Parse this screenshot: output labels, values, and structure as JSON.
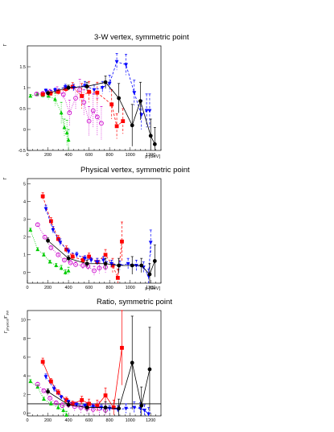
{
  "chart_data": [
    {
      "type": "scatter",
      "title": "3-W vertex, symmetric point",
      "xlabel": "p [GeV]",
      "ylabel": "Γ",
      "xlim": [
        0,
        1300
      ],
      "ylim": [
        -0.5,
        2.0
      ],
      "x_ticks": [
        0,
        200,
        400,
        600,
        800,
        1000,
        1200
      ],
      "y_ticks": [
        -0.5,
        0,
        0.5,
        1,
        1.5
      ],
      "y_tick_labels": [
        "-0.5",
        "0",
        "0.5",
        "1",
        "1.5"
      ],
      "series": [
        {
          "color": "#00cc00",
          "marker": "triangle-up",
          "line": "dotted",
          "x": [
            30,
            95,
            150,
            205,
            270,
            330,
            360,
            385,
            400
          ],
          "y": [
            0.8,
            0.84,
            0.82,
            0.8,
            0.72,
            0.4,
            0.05,
            -0.08,
            -0.25
          ],
          "err": [
            0.04,
            0.05,
            0.06,
            0.08,
            0.15,
            0.25,
            0.2,
            0.3,
            0.25
          ]
        },
        {
          "color": "#cc00cc",
          "marker": "circle-open",
          "line": "dotted",
          "x": [
            90,
            150,
            220,
            290,
            350,
            410,
            470,
            510,
            550,
            600,
            640,
            680,
            720
          ],
          "y": [
            0.85,
            0.86,
            0.9,
            0.92,
            0.84,
            0.4,
            0.75,
            0.95,
            0.65,
            0.2,
            0.45,
            0.3,
            0.15
          ],
          "err": [
            0.04,
            0.05,
            0.06,
            0.1,
            0.12,
            0.3,
            0.25,
            0.25,
            0.3,
            0.35,
            0.4,
            0.45,
            0.4
          ]
        },
        {
          "color": "#ff0000",
          "marker": "square",
          "line": "dashed",
          "x": [
            150,
            225,
            300,
            375,
            440,
            530,
            600,
            680,
            820,
            870,
            930
          ],
          "y": [
            0.84,
            0.86,
            0.9,
            0.97,
            1.02,
            0.8,
            0.9,
            0.88,
            0.6,
            0.08,
            0.2
          ],
          "err": [
            0.04,
            0.05,
            0.06,
            0.08,
            0.1,
            0.3,
            0.25,
            0.25,
            0.35,
            0.3,
            0.3
          ]
        },
        {
          "color": "#0000ff",
          "marker": "triangle-down",
          "line": "dashed",
          "x": [
            180,
            270,
            370,
            450,
            560,
            650,
            730,
            800,
            870,
            960,
            1040,
            1110,
            1160,
            1190
          ],
          "y": [
            0.93,
            0.94,
            1.02,
            1.0,
            1.05,
            0.95,
            1.0,
            1.1,
            1.62,
            1.55,
            0.88,
            0.35,
            0.45,
            0.45
          ],
          "err": [
            0.04,
            0.05,
            0.06,
            0.08,
            0.1,
            0.12,
            0.15,
            0.2,
            0.2,
            0.25,
            0.3,
            0.35,
            0.4,
            0.4
          ]
        },
        {
          "color": "#000000",
          "marker": "circle",
          "line": "solid",
          "x": [
            200,
            400,
            580,
            760,
            890,
            1020,
            1100,
            1200,
            1240
          ],
          "y": [
            0.87,
            1.0,
            1.03,
            1.13,
            0.75,
            0.1,
            0.68,
            -0.15,
            -0.35
          ],
          "err": [
            0.04,
            0.06,
            0.1,
            0.15,
            0.35,
            0.5,
            0.45,
            0.4,
            0.4
          ]
        }
      ]
    },
    {
      "type": "scatter",
      "title": "Physical vertex, symmetric point",
      "xlabel": "p [GeV]",
      "ylabel": "Γ",
      "xlim": [
        0,
        1300
      ],
      "ylim": [
        -0.6,
        5.3
      ],
      "x_ticks": [
        0,
        200,
        400,
        600,
        800,
        1000,
        1200
      ],
      "y_ticks": [
        0,
        1,
        2,
        3,
        4,
        5
      ],
      "y_tick_labels": [
        "0",
        "1",
        "2",
        "3",
        "4",
        "5"
      ],
      "series": [
        {
          "color": "#00cc00",
          "marker": "triangle-up",
          "line": "dotted",
          "x": [
            30,
            100,
            160,
            220,
            280,
            330,
            370,
            400
          ],
          "y": [
            2.4,
            1.3,
            1.0,
            0.6,
            0.4,
            0.25,
            0.0,
            0.1
          ],
          "err": [
            0.1,
            0.1,
            0.1,
            0.1,
            0.12,
            0.15,
            0.15,
            0.2
          ]
        },
        {
          "color": "#cc00cc",
          "marker": "circle-open",
          "line": "dotted",
          "x": [
            100,
            170,
            230,
            300,
            360,
            420,
            470,
            540,
            590,
            650,
            700,
            760
          ],
          "y": [
            2.7,
            2.0,
            1.4,
            1.0,
            0.7,
            0.55,
            0.45,
            0.4,
            0.35,
            0.1,
            0.25,
            0.3
          ],
          "err": [
            0.1,
            0.1,
            0.1,
            0.1,
            0.1,
            0.12,
            0.15,
            0.2,
            0.2,
            0.25,
            0.3,
            0.3
          ]
        },
        {
          "color": "#ff0000",
          "marker": "square",
          "line": "dashed",
          "x": [
            150,
            230,
            300,
            380,
            440,
            540,
            600,
            680,
            760,
            830,
            880,
            920
          ],
          "y": [
            4.3,
            2.9,
            1.9,
            1.3,
            0.9,
            0.7,
            0.9,
            0.6,
            1.0,
            0.4,
            -0.3,
            1.75
          ],
          "err": [
            0.2,
            0.2,
            0.2,
            0.2,
            0.15,
            0.2,
            0.2,
            0.2,
            0.3,
            0.4,
            0.5,
            1.1
          ]
        },
        {
          "color": "#0000ff",
          "marker": "triangle-down",
          "line": "dashed",
          "x": [
            180,
            250,
            320,
            400,
            480,
            560,
            620,
            680,
            740,
            820,
            900,
            980,
            1060,
            1130,
            1180,
            1200
          ],
          "y": [
            3.6,
            2.4,
            1.7,
            1.2,
            1.0,
            0.8,
            0.7,
            0.6,
            0.7,
            0.5,
            0.4,
            0.5,
            0.4,
            0.3,
            -0.2,
            1.7
          ],
          "err": [
            0.2,
            0.2,
            0.2,
            0.15,
            0.15,
            0.15,
            0.15,
            0.2,
            0.2,
            0.2,
            0.25,
            0.3,
            0.3,
            0.3,
            0.4,
            0.7
          ]
        },
        {
          "color": "#000000",
          "marker": "circle",
          "line": "solid",
          "x": [
            200,
            400,
            580,
            760,
            890,
            1020,
            1110,
            1190,
            1240
          ],
          "y": [
            1.8,
            0.8,
            0.5,
            0.5,
            0.4,
            0.4,
            0.4,
            -0.1,
            0.65
          ],
          "err": [
            0.15,
            0.15,
            0.2,
            0.3,
            0.4,
            0.5,
            0.4,
            0.6,
            0.9
          ]
        }
      ]
    },
    {
      "type": "scatter",
      "title": "Ratio, symmetric point",
      "xlabel": "p [GeV]",
      "ylabel": "Γphysical/Γ3W",
      "xlim": [
        0,
        1300
      ],
      "ylim": [
        -0.3,
        11.0
      ],
      "x_ticks": [
        0,
        200,
        400,
        600,
        800,
        1000,
        1200
      ],
      "y_ticks": [
        0,
        2,
        4,
        6,
        8,
        10
      ],
      "y_tick_labels": [
        "0",
        "2",
        "4",
        "6",
        "8",
        "10"
      ],
      "reference_line": 1,
      "series": [
        {
          "color": "#00cc00",
          "marker": "triangle-up",
          "line": "dotted",
          "x": [
            30,
            100,
            160,
            230,
            300,
            350,
            380
          ],
          "y": [
            3.4,
            2.8,
            1.5,
            1.0,
            0.6,
            0.3,
            -0.2
          ],
          "err": [
            0.2,
            0.2,
            0.2,
            0.2,
            0.3,
            0.5,
            0.4
          ]
        },
        {
          "color": "#cc00cc",
          "marker": "circle-open",
          "line": "dotted",
          "x": [
            100,
            160,
            220,
            280,
            340,
            400,
            460,
            520,
            580,
            640,
            700,
            760
          ],
          "y": [
            3.1,
            2.4,
            1.6,
            1.1,
            0.8,
            0.9,
            0.7,
            0.6,
            0.5,
            0.4,
            0.5,
            0.3
          ],
          "err": [
            0.2,
            0.2,
            0.2,
            0.2,
            0.3,
            0.4,
            0.5,
            0.6,
            0.6,
            0.6,
            0.7,
            0.7
          ]
        },
        {
          "color": "#ff0000",
          "marker": "square",
          "line": "solid",
          "x": [
            150,
            230,
            300,
            380,
            440,
            530,
            600,
            680,
            760,
            840,
            920
          ],
          "y": [
            5.5,
            3.4,
            2.2,
            1.4,
            1.0,
            1.4,
            1.0,
            0.8,
            1.9,
            0.6,
            7.0
          ],
          "err": [
            0.4,
            0.3,
            0.3,
            0.3,
            0.3,
            0.4,
            0.5,
            0.6,
            0.8,
            0.8,
            4.0
          ]
        },
        {
          "color": "#0000ff",
          "marker": "triangle-down",
          "line": "dashed",
          "x": [
            180,
            260,
            330,
            400,
            480,
            560,
            640,
            720,
            800,
            880,
            960,
            1040,
            1100,
            1140,
            1180
          ],
          "y": [
            3.9,
            2.6,
            1.7,
            1.2,
            0.9,
            0.8,
            0.7,
            0.6,
            0.5,
            0.4,
            0.5,
            0.6,
            0.5,
            0.3,
            -0.1
          ],
          "err": [
            0.3,
            0.3,
            0.2,
            0.2,
            0.2,
            0.2,
            0.3,
            0.3,
            0.3,
            0.4,
            0.5,
            0.6,
            0.6,
            0.6,
            0.7
          ]
        },
        {
          "color": "#000000",
          "marker": "circle",
          "line": "solid",
          "x": [
            200,
            400,
            580,
            760,
            890,
            1020,
            1110,
            1190
          ],
          "y": [
            2.3,
            0.9,
            0.6,
            0.6,
            0.5,
            5.4,
            0.8,
            4.7
          ],
          "err": [
            0.3,
            0.3,
            0.4,
            0.6,
            1.0,
            5.0,
            2.0,
            4.5
          ]
        }
      ]
    }
  ]
}
